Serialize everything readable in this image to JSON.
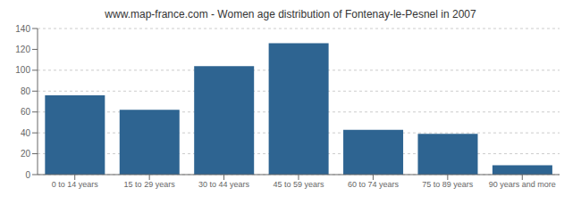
{
  "chart_data": {
    "type": "bar",
    "title": "www.map-france.com - Women age distribution of Fontenay-le-Pesnel in 2007",
    "categories": [
      "0 to 14 years",
      "15 to 29 years",
      "30 to 44 years",
      "45 to 59 years",
      "60 to 74 years",
      "75 to 89 years",
      "90 years and more"
    ],
    "values": [
      76,
      62,
      104,
      126,
      43,
      39,
      9
    ],
    "color": "#2e6491",
    "ylim": [
      0,
      140
    ],
    "yticks": [
      0,
      20,
      40,
      60,
      80,
      100,
      120,
      140
    ],
    "grid": true
  }
}
